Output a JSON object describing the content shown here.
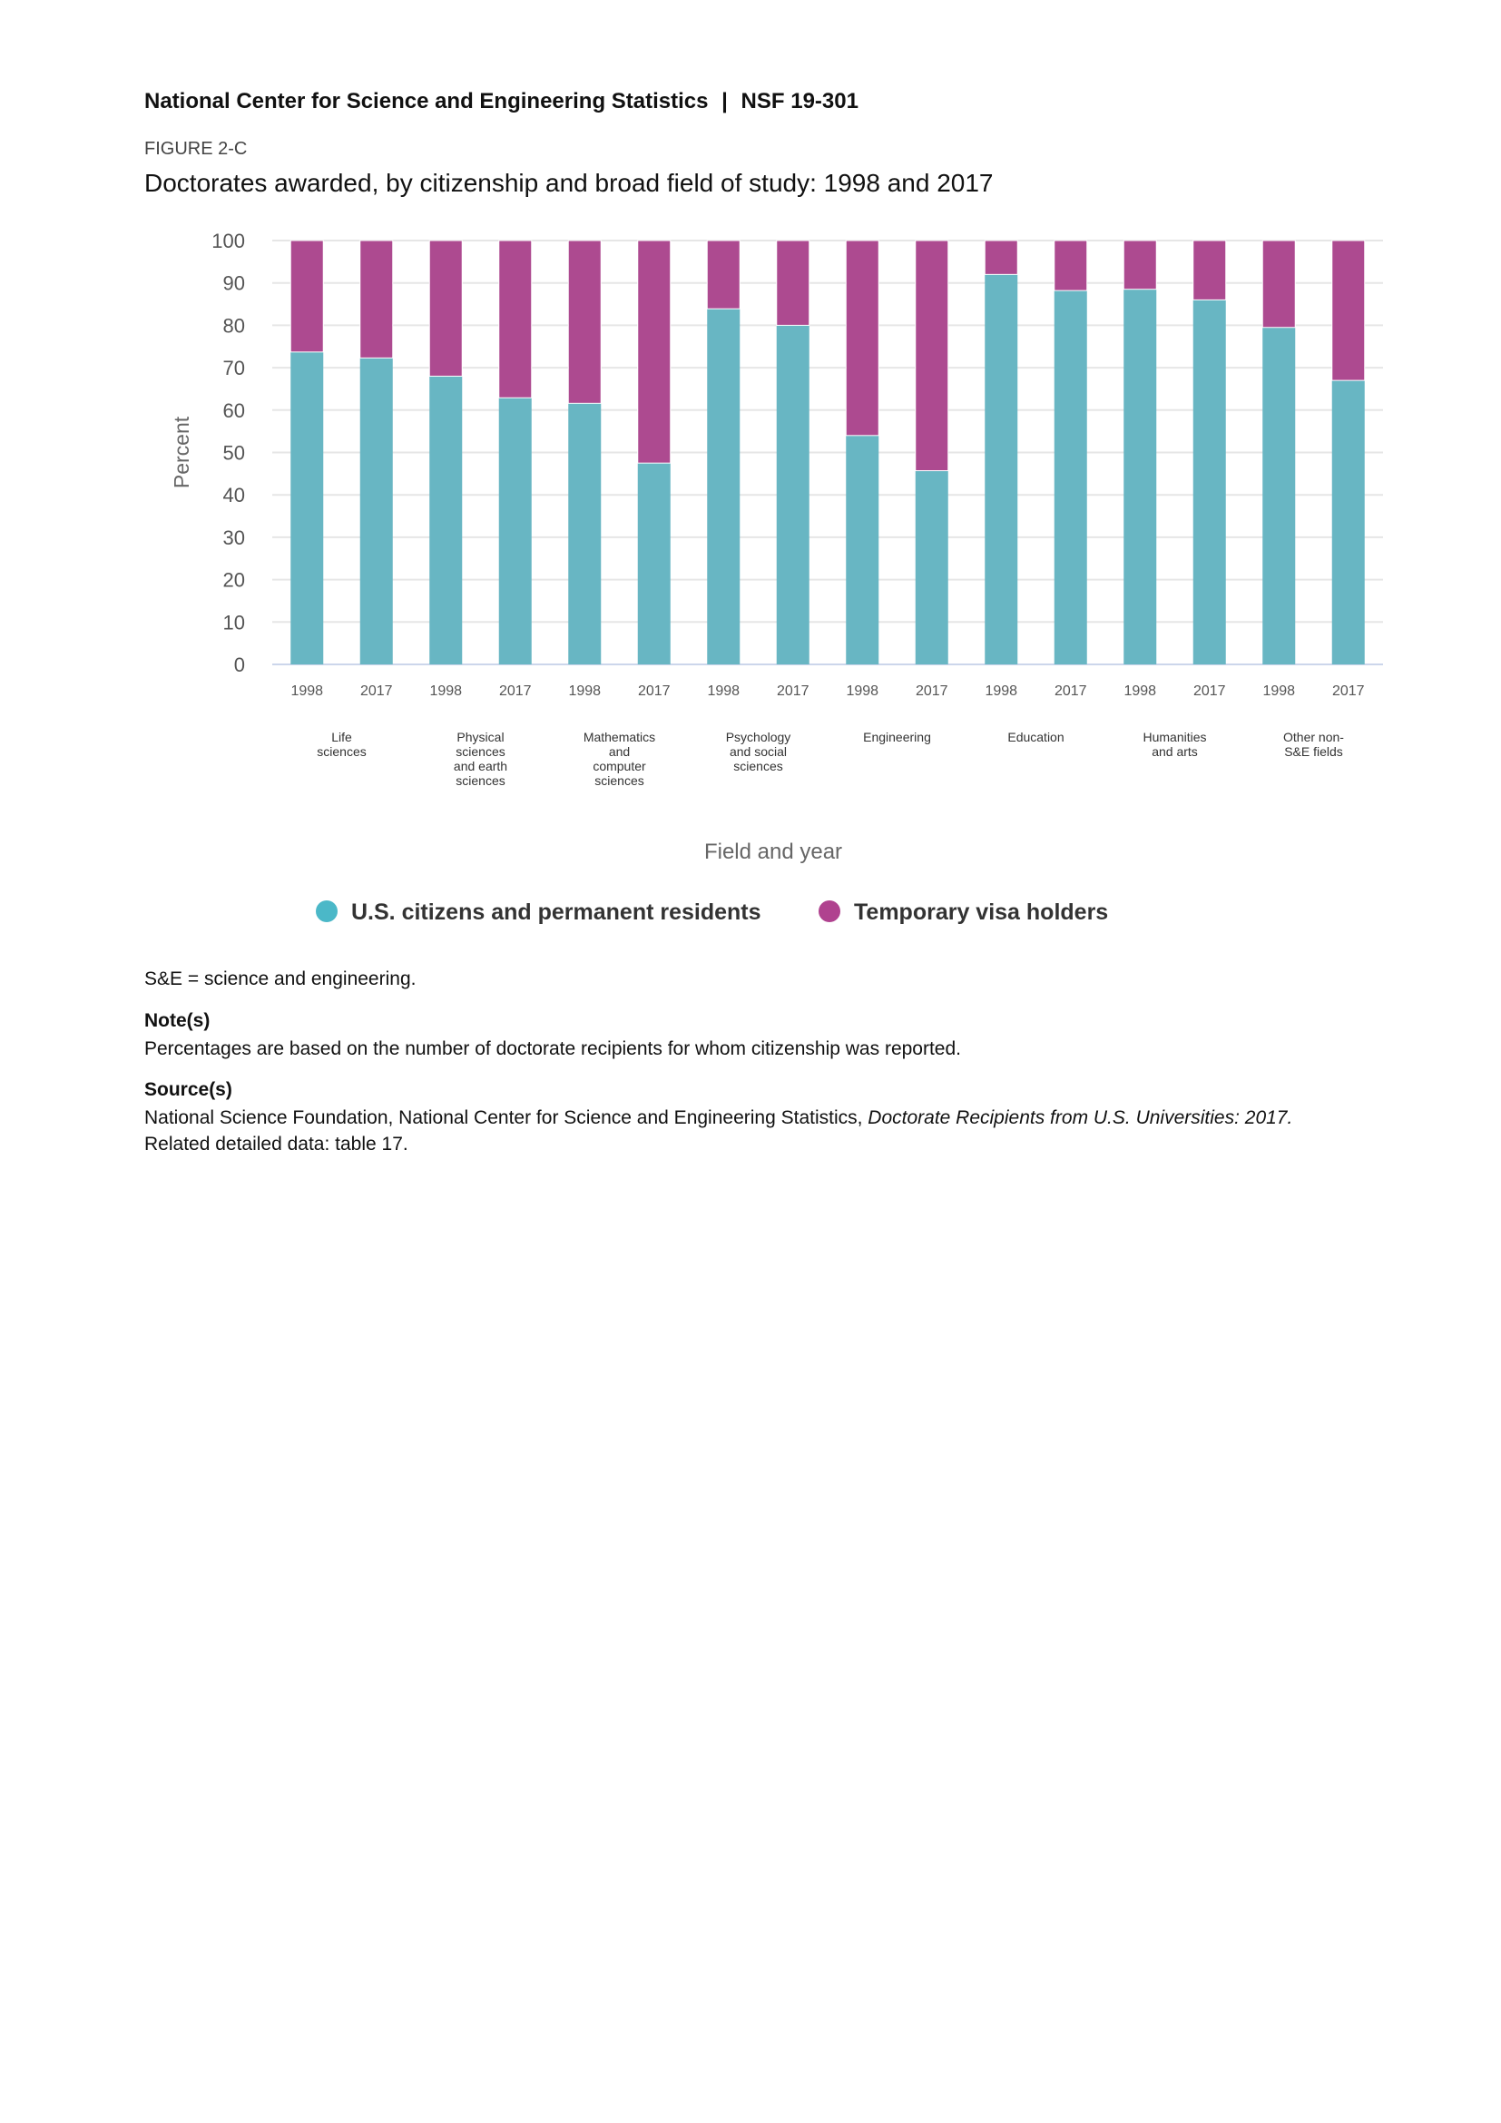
{
  "header": {
    "org": "National Center for Science and Engineering Statistics",
    "separator": "|",
    "report": "NSF 19-301"
  },
  "figure_label": "FIGURE 2-C",
  "chart_data": {
    "type": "bar",
    "stacked": true,
    "title": "Doctorates awarded, by citizenship and broad field of study: 1998 and 2017",
    "xlabel": "Field and year",
    "ylabel": "Percent",
    "ylim": [
      0,
      100
    ],
    "yticks": [
      "0",
      "10",
      "20",
      "30",
      "40",
      "50",
      "60",
      "70",
      "80",
      "90",
      "100"
    ],
    "grid": true,
    "legend_position": "bottom",
    "groups": [
      {
        "label": "Life sciences",
        "lines": [
          "Life",
          "sciences"
        ]
      },
      {
        "label": "Physical sciences and earth sciences",
        "lines": [
          "Physical",
          "sciences",
          "and earth",
          "sciences"
        ]
      },
      {
        "label": "Mathematics and computer sciences",
        "lines": [
          "Mathematics",
          "and",
          "computer",
          "sciences"
        ]
      },
      {
        "label": "Psychology and social sciences",
        "lines": [
          "Psychology",
          "and social",
          "sciences"
        ]
      },
      {
        "label": "Engineering",
        "lines": [
          "Engineering"
        ]
      },
      {
        "label": "Education",
        "lines": [
          "Education"
        ]
      },
      {
        "label": "Humanities and arts",
        "lines": [
          "Humanities",
          "and arts"
        ]
      },
      {
        "label": "Other non-S&E fields",
        "lines": [
          "Other non-",
          "S&E fields"
        ]
      }
    ],
    "categories": [
      "1998",
      "2017",
      "1998",
      "2017",
      "1998",
      "2017",
      "1998",
      "2017",
      "1998",
      "2017",
      "1998",
      "2017",
      "1998",
      "2017",
      "1998",
      "2017"
    ],
    "series": [
      {
        "name": "U.S. citizens and permanent residents",
        "color": "#68b6c3",
        "legend_color": "#4bb8c8",
        "values": [
          73.7,
          72.3,
          68.0,
          62.9,
          61.6,
          47.5,
          83.9,
          80.0,
          54.0,
          45.7,
          92.0,
          88.2,
          88.5,
          86.0,
          79.5,
          67.0
        ]
      },
      {
        "name": "Temporary visa holders",
        "color": "#ad4a90",
        "legend_color": "#b0428f",
        "values": [
          26.3,
          27.7,
          32.0,
          37.1,
          38.4,
          52.5,
          16.1,
          20.0,
          46.0,
          54.3,
          8.0,
          11.8,
          11.5,
          14.0,
          20.5,
          33.0
        ]
      }
    ]
  },
  "notes": {
    "abbrev": "S&E = science and engineering.",
    "note_heading": "Note(s)",
    "note_text": "Percentages are based on the number of doctorate recipients for whom citizenship was reported.",
    "source_heading": "Source(s)",
    "source_text": "National Science Foundation, National Center for Science and Engineering Statistics, ",
    "source_title": "Doctorate Recipients from U.S. Universities: 2017.",
    "related": "Related detailed data: table 17."
  }
}
